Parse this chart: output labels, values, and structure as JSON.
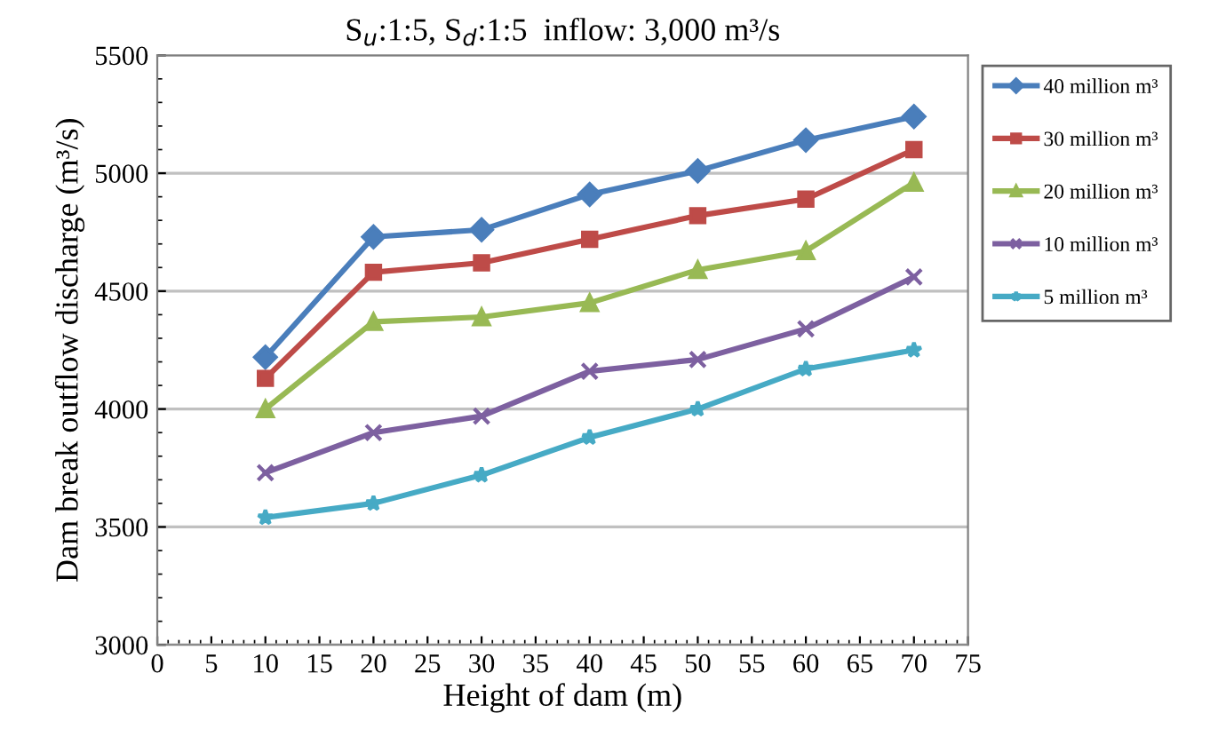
{
  "chart_data": {
    "type": "line",
    "title": "S$_{u}$:1:5, S$_{d}$:1:5  inflow: 3,000 m³/s",
    "xlabel": "Height of dam (m)",
    "ylabel": "Dam break outflow discharge (m³/s)",
    "x": [
      10,
      20,
      30,
      40,
      50,
      60,
      70
    ],
    "series": [
      {
        "name": "40 million m³",
        "color": "#4a7ebb",
        "marker": "diamond",
        "values": [
          4220,
          4730,
          4760,
          4910,
          5010,
          5140,
          5240
        ]
      },
      {
        "name": "30 million m³",
        "color": "#be4b48",
        "marker": "square",
        "values": [
          4130,
          4580,
          4620,
          4720,
          4820,
          4890,
          5100
        ]
      },
      {
        "name": "20 million m³",
        "color": "#98b954",
        "marker": "triangle",
        "values": [
          4000,
          4370,
          4390,
          4450,
          4590,
          4670,
          4960
        ]
      },
      {
        "name": "10 million m³",
        "color": "#7d60a0",
        "marker": "cross",
        "values": [
          3730,
          3900,
          3970,
          4160,
          4210,
          4340,
          4560
        ]
      },
      {
        "name": "5 million m³",
        "color": "#46aac5",
        "marker": "star",
        "values": [
          3540,
          3600,
          3720,
          3880,
          4000,
          4170,
          4250
        ]
      }
    ],
    "xlim": [
      0,
      75
    ],
    "xticks": [
      0,
      5,
      10,
      15,
      20,
      25,
      30,
      35,
      40,
      45,
      50,
      55,
      60,
      65,
      70,
      75
    ],
    "ylim": [
      3000,
      5500
    ],
    "yticks": [
      3000,
      3500,
      4000,
      4500,
      5000,
      5500
    ],
    "grid": "y",
    "legend": "right",
    "line_style": "solid"
  }
}
